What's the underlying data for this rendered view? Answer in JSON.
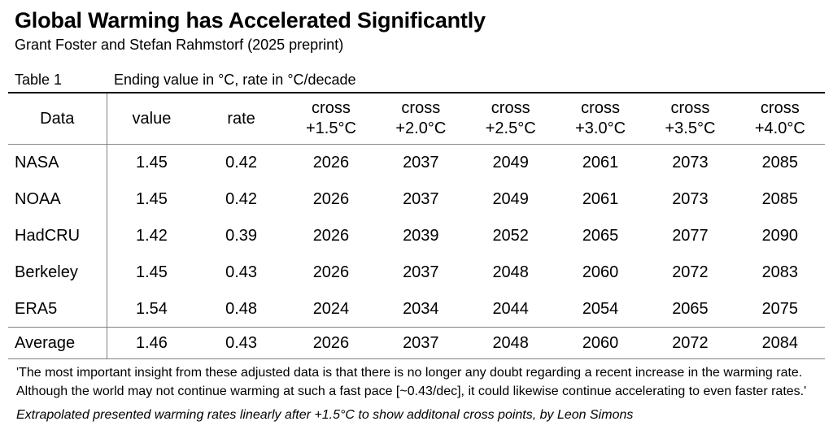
{
  "page": {
    "title": "Global Warming has Accelerated Significantly",
    "subtitle": "Grant Foster and Stefan Rahmstorf (2025 preprint)"
  },
  "table": {
    "label": "Table 1",
    "caption": "Ending value in °C, rate in °C/decade",
    "header": {
      "data": "Data",
      "value": "value",
      "rate": "rate",
      "cross_word": "cross",
      "thresholds": [
        "+1.5°C",
        "+2.0°C",
        "+2.5°C",
        "+3.0°C",
        "+3.5°C",
        "+4.0°C"
      ]
    },
    "rows": [
      {
        "name": "NASA",
        "value": "1.45",
        "rate": "0.42",
        "cross": [
          "2026",
          "2037",
          "2049",
          "2061",
          "2073",
          "2085"
        ]
      },
      {
        "name": "NOAA",
        "value": "1.45",
        "rate": "0.42",
        "cross": [
          "2026",
          "2037",
          "2049",
          "2061",
          "2073",
          "2085"
        ]
      },
      {
        "name": "HadCRU",
        "value": "1.42",
        "rate": "0.39",
        "cross": [
          "2026",
          "2039",
          "2052",
          "2065",
          "2077",
          "2090"
        ]
      },
      {
        "name": "Berkeley",
        "value": "1.45",
        "rate": "0.43",
        "cross": [
          "2026",
          "2037",
          "2048",
          "2060",
          "2072",
          "2083"
        ]
      },
      {
        "name": "ERA5",
        "value": "1.54",
        "rate": "0.48",
        "cross": [
          "2024",
          "2034",
          "2044",
          "2054",
          "2065",
          "2075"
        ]
      }
    ],
    "average": {
      "name": "Average",
      "value": "1.46",
      "rate": "0.43",
      "cross": [
        "2026",
        "2037",
        "2048",
        "2060",
        "2072",
        "2084"
      ]
    }
  },
  "footnotes": {
    "quote_line1": "'The most important insight from these adjusted data is that there is no longer any doubt regarding a recent increase in the warming rate.",
    "quote_line2": "Although the world may not continue warming at such a fast pace [~0.43/dec], it could likewise continue accelerating to even faster rates.'",
    "attribution": "Extrapolated presented warming rates linearly after +1.5°C to show additonal cross points, by Leon Simons"
  },
  "colors": {
    "background": "#ffffff",
    "text": "#000000",
    "top_rule": "#000000",
    "grid_gray": "#808080"
  },
  "chart_data": {
    "type": "table",
    "title": "Global Warming has Accelerated Significantly",
    "subtitle": "Grant Foster and Stefan Rahmstorf (2025 preprint)",
    "table_label": "Table 1",
    "caption": "Ending value in °C, rate in °C/decade",
    "columns": [
      "Data",
      "value",
      "rate",
      "cross +1.5°C",
      "cross +2.0°C",
      "cross +2.5°C",
      "cross +3.0°C",
      "cross +3.5°C",
      "cross +4.0°C"
    ],
    "rows": [
      [
        "NASA",
        1.45,
        0.42,
        2026,
        2037,
        2049,
        2061,
        2073,
        2085
      ],
      [
        "NOAA",
        1.45,
        0.42,
        2026,
        2037,
        2049,
        2061,
        2073,
        2085
      ],
      [
        "HadCRU",
        1.42,
        0.39,
        2026,
        2039,
        2052,
        2065,
        2077,
        2090
      ],
      [
        "Berkeley",
        1.45,
        0.43,
        2026,
        2037,
        2048,
        2060,
        2072,
        2083
      ],
      [
        "ERA5",
        1.54,
        0.48,
        2024,
        2034,
        2044,
        2054,
        2065,
        2075
      ],
      [
        "Average",
        1.46,
        0.43,
        2026,
        2037,
        2048,
        2060,
        2072,
        2084
      ]
    ]
  }
}
